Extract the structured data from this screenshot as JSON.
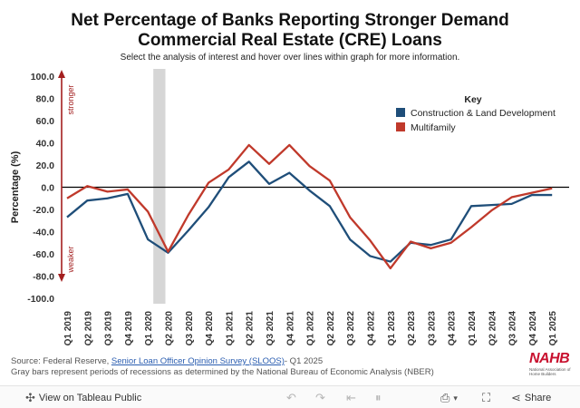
{
  "title_line1": "Net Percentage of Banks Reporting Stronger Demand",
  "title_line2": "Commercial Real Estate (CRE) Loans",
  "subtitle": "Select the analysis of interest and hover over lines within graph for more information.",
  "chart_data": {
    "type": "line",
    "title": "Net Percentage of Banks Reporting Stronger Demand Commercial Real Estate (CRE) Loans",
    "ylabel": "Percentage (%)",
    "ylim": [
      -100,
      100
    ],
    "yticks": [
      100,
      80,
      60,
      40,
      20,
      0,
      -20,
      -40,
      -60,
      -80,
      -100
    ],
    "ytick_labels": [
      "100.0",
      "80.0",
      "60.0",
      "40.0",
      "20.0",
      "0.0",
      "-20.0",
      "-40.0",
      "-60.0",
      "-80.0",
      "-100.0"
    ],
    "stronger_label": "stronger",
    "weaker_label": "weaker",
    "categories": [
      "Q1 2019",
      "Q2 2019",
      "Q3 2019",
      "Q4 2019",
      "Q1 2020",
      "Q2 2020",
      "Q3 2020",
      "Q4 2020",
      "Q1 2021",
      "Q2 2021",
      "Q3 2021",
      "Q4 2021",
      "Q1 2022",
      "Q2 2022",
      "Q3 2022",
      "Q4 2022",
      "Q1 2023",
      "Q2 2023",
      "Q3 2023",
      "Q4 2023",
      "Q1 2024",
      "Q2 2024",
      "Q3 2024",
      "Q4 2024",
      "Q1 2025"
    ],
    "recession": {
      "start": "Q1 2020",
      "end": "Q2 2020"
    },
    "legend_title": "Key",
    "series": [
      {
        "name": "Construction & Land Development",
        "color": "#1f4e79",
        "values": [
          -27,
          -12,
          -10,
          -6,
          -47,
          -59,
          -39,
          -18,
          9,
          23,
          3,
          13,
          -3,
          -17,
          -47,
          -62,
          -67,
          -50,
          -52,
          -47,
          -17,
          -16,
          -15,
          -7,
          -7
        ]
      },
      {
        "name": "Multifamily",
        "color": "#c0392b",
        "values": [
          -10,
          1,
          -4,
          -2,
          -22,
          -58,
          -25,
          4,
          16,
          38,
          21,
          38,
          19,
          6,
          -27,
          -48,
          -73,
          -49,
          -55,
          -50,
          -36,
          -21,
          -9,
          -5,
          -1
        ]
      }
    ]
  },
  "footer": {
    "source_prefix": "Source: Federal Reserve, ",
    "source_link": "Senior Loan Officer Opinion Survey (SLOOS)",
    "source_suffix": "- Q1 2025",
    "note": "Gray bars represent periods of recessions as determined by the National Bureau of Economic Analysis (NBER)"
  },
  "logo": {
    "text": "NAHB",
    "subtext": "National Association of Home Builders"
  },
  "toolbar": {
    "view_label": "View on Tableau Public",
    "share_label": "Share"
  }
}
